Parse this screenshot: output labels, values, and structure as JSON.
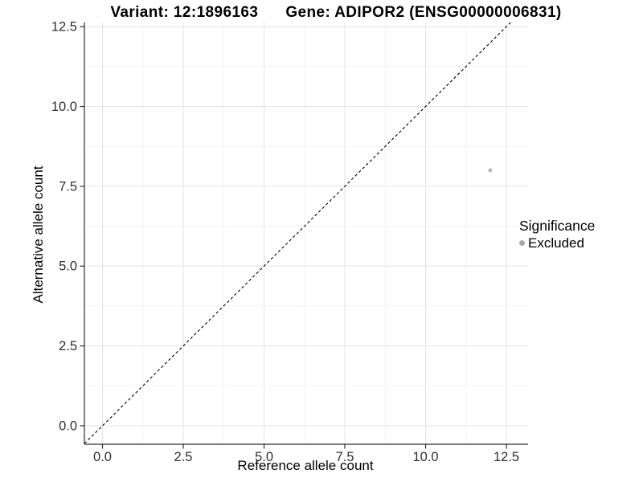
{
  "chart_data": {
    "type": "scatter",
    "title_left": "Variant: 12:1896163",
    "title_right": "Gene: ADIPOR2 (ENSG00000006831)",
    "xlabel": "Reference allele count",
    "ylabel": "Alternative allele count",
    "x_ticks": [
      0.0,
      2.5,
      5.0,
      7.5,
      10.0,
      12.5
    ],
    "y_ticks": [
      0.0,
      2.5,
      5.0,
      7.5,
      10.0,
      12.5
    ],
    "x_tick_labels": [
      "0.0",
      "2.5",
      "5.0",
      "7.5",
      "10.0",
      "12.5"
    ],
    "y_tick_labels": [
      "0.0",
      "2.5",
      "5.0",
      "7.5",
      "10.0",
      "12.5"
    ],
    "x_minor_ticks": [
      1.25,
      3.75,
      6.25,
      8.75,
      11.25
    ],
    "y_minor_ticks": [
      1.25,
      3.75,
      6.25,
      8.75,
      11.25
    ],
    "xlim": [
      -0.56,
      13.17
    ],
    "ylim": [
      -0.58,
      12.63
    ],
    "grid": true,
    "series": [
      {
        "name": "Excluded",
        "color": "#bdbdbd",
        "points": [
          {
            "x": 12,
            "y": 8
          }
        ]
      }
    ],
    "reference_line": {
      "type": "identity",
      "slope": 1,
      "intercept": 0,
      "style": "dashed",
      "color": "#000000"
    },
    "legend": {
      "title": "Significance",
      "position": "right",
      "items": [
        {
          "label": "Excluded",
          "color": "#a8a8a8"
        }
      ]
    },
    "colors": {
      "grid_major": "#e5e5e5",
      "grid_minor": "#f1f1f1",
      "axis": "#2e2e2e",
      "tick_text": "#303030",
      "background": "#ffffff"
    }
  }
}
